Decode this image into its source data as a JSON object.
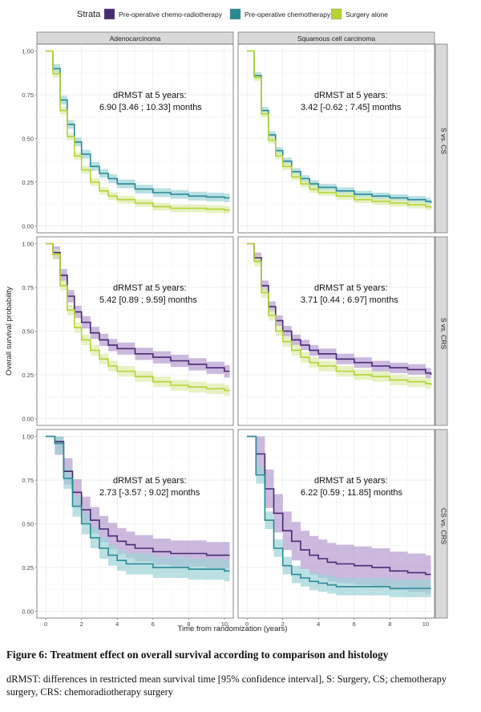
{
  "legend": {
    "title": "Strata",
    "items": [
      {
        "label": "Pre-operative chemo-radiotherapy",
        "color": "#4a2a73"
      },
      {
        "label": "Pre-operative chemotherapy",
        "color": "#2a8a93"
      },
      {
        "label": "Surgery alone",
        "color": "#b5d334"
      }
    ]
  },
  "colors": {
    "CRS": "#4a2a73",
    "CS": "#2a8a93",
    "S": "#b5d334",
    "CRS_band": "#b59bd0",
    "CS_band": "#9dd3d7",
    "S_band": "#dcedaa"
  },
  "caption": {
    "title": "Figure 6: Treatment effect on overall survival according to comparison and histology",
    "body": "dRMST: differences in restricted mean survival time [95% confidence interval], S: Surgery, CS; chemotherapy surgery, CRS: chemoradiotherapy surgery"
  },
  "chart_data": {
    "type": "line",
    "xlabel": "Time from randomization (years)",
    "ylabel": "Overall survival probability",
    "xlim": [
      -0.5,
      10.5
    ],
    "ylim": [
      -0.04,
      1.04
    ],
    "xticks": [
      0,
      2,
      4,
      6,
      8,
      10
    ],
    "yticks": [
      0,
      0.25,
      0.5,
      0.75,
      1
    ],
    "ytick_labels": [
      "0.00",
      "0.25",
      "0.50",
      "0.75",
      "1.00"
    ],
    "grid": true,
    "legend_position": "top",
    "columns": [
      "Adenocarcinoma",
      "Squamous cell carcinoma"
    ],
    "rows": [
      "S vs. CS",
      "S vs. CRS",
      "CS vs. CRS"
    ],
    "panels": [
      {
        "row": 0,
        "col": 0,
        "annotation": [
          "dRMST at 5 years:",
          "6.90 [3.46 ; 10.33] months"
        ],
        "series": [
          {
            "key": "CS",
            "x": [
              0,
              0.4,
              0.8,
              1.2,
              1.6,
              2,
              2.5,
              3,
              3.5,
              4,
              5,
              6,
              7,
              8,
              9,
              10,
              10.3
            ],
            "y": [
              1,
              0.9,
              0.72,
              0.58,
              0.48,
              0.41,
              0.34,
              0.3,
              0.27,
              0.24,
              0.21,
              0.19,
              0.18,
              0.17,
              0.165,
              0.16,
              0.16
            ],
            "band": 0.025
          },
          {
            "key": "S",
            "x": [
              0,
              0.4,
              0.8,
              1.2,
              1.6,
              2,
              2.5,
              3,
              3.5,
              4,
              5,
              6,
              7,
              8,
              9,
              10,
              10.3
            ],
            "y": [
              1,
              0.87,
              0.66,
              0.51,
              0.4,
              0.32,
              0.25,
              0.2,
              0.17,
              0.15,
              0.13,
              0.11,
              0.1,
              0.1,
              0.095,
              0.09,
              0.09
            ],
            "band": 0.022
          }
        ]
      },
      {
        "row": 0,
        "col": 1,
        "annotation": [
          "dRMST at 5 years:",
          "3.42 [-0.62 ; 7.45] months"
        ],
        "series": [
          {
            "key": "CS",
            "x": [
              0,
              0.4,
              0.8,
              1.2,
              1.6,
              2,
              2.5,
              3,
              3.5,
              4,
              5,
              6,
              7,
              8,
              9,
              10,
              10.3
            ],
            "y": [
              1,
              0.86,
              0.66,
              0.52,
              0.43,
              0.37,
              0.31,
              0.27,
              0.24,
              0.22,
              0.2,
              0.18,
              0.17,
              0.16,
              0.15,
              0.14,
              0.13
            ],
            "band": 0.02
          },
          {
            "key": "S",
            "x": [
              0,
              0.4,
              0.8,
              1.2,
              1.6,
              2,
              2.5,
              3,
              3.5,
              4,
              5,
              6,
              7,
              8,
              9,
              10,
              10.3
            ],
            "y": [
              1,
              0.85,
              0.64,
              0.49,
              0.4,
              0.34,
              0.28,
              0.24,
              0.21,
              0.19,
              0.17,
              0.15,
              0.14,
              0.13,
              0.12,
              0.11,
              0.1
            ],
            "band": 0.02
          }
        ]
      },
      {
        "row": 1,
        "col": 0,
        "annotation": [
          "dRMST at 5 years:",
          "5.42 [0.89 ; 9.59] months"
        ],
        "series": [
          {
            "key": "CRS",
            "x": [
              0,
              0.4,
              0.8,
              1.2,
              1.6,
              2,
              2.5,
              3,
              3.5,
              4,
              5,
              6,
              7,
              8,
              9,
              10,
              10.3
            ],
            "y": [
              1,
              0.95,
              0.82,
              0.7,
              0.61,
              0.55,
              0.49,
              0.45,
              0.42,
              0.4,
              0.37,
              0.35,
              0.33,
              0.31,
              0.29,
              0.27,
              0.27
            ],
            "band": 0.035
          },
          {
            "key": "S",
            "x": [
              0,
              0.4,
              0.8,
              1.2,
              1.6,
              2,
              2.5,
              3,
              3.5,
              4,
              5,
              6,
              7,
              8,
              9,
              10,
              10.3
            ],
            "y": [
              1,
              0.94,
              0.76,
              0.62,
              0.52,
              0.45,
              0.39,
              0.34,
              0.3,
              0.27,
              0.24,
              0.21,
              0.19,
              0.18,
              0.17,
              0.16,
              0.16
            ],
            "band": 0.03
          }
        ]
      },
      {
        "row": 1,
        "col": 1,
        "annotation": [
          "dRMST at 5 years:",
          "3.71 [0.44 ; 6.97] months"
        ],
        "series": [
          {
            "key": "CRS",
            "x": [
              0,
              0.4,
              0.8,
              1.2,
              1.6,
              2,
              2.5,
              3,
              3.5,
              4,
              5,
              6,
              7,
              8,
              9,
              10,
              10.3
            ],
            "y": [
              1,
              0.92,
              0.76,
              0.64,
              0.56,
              0.5,
              0.45,
              0.42,
              0.39,
              0.37,
              0.34,
              0.32,
              0.3,
              0.29,
              0.28,
              0.26,
              0.25
            ],
            "band": 0.03
          },
          {
            "key": "S",
            "x": [
              0,
              0.4,
              0.8,
              1.2,
              1.6,
              2,
              2.5,
              3,
              3.5,
              4,
              5,
              6,
              7,
              8,
              9,
              10,
              10.3
            ],
            "y": [
              1,
              0.9,
              0.72,
              0.59,
              0.5,
              0.44,
              0.39,
              0.35,
              0.32,
              0.3,
              0.27,
              0.25,
              0.24,
              0.22,
              0.21,
              0.2,
              0.19
            ],
            "band": 0.03
          }
        ]
      },
      {
        "row": 2,
        "col": 0,
        "annotation": [
          "dRMST at 5 years:",
          "2.73 [-3.57 ; 9.02] months"
        ],
        "series": [
          {
            "key": "CRS",
            "x": [
              0,
              0.5,
              1,
              1.5,
              2,
              2.5,
              3,
              3.5,
              4,
              4.5,
              5,
              6,
              7,
              8,
              9,
              10,
              10.3
            ],
            "y": [
              1,
              0.97,
              0.8,
              0.68,
              0.58,
              0.52,
              0.47,
              0.43,
              0.4,
              0.38,
              0.36,
              0.34,
              0.33,
              0.33,
              0.32,
              0.32,
              0.32
            ],
            "band": 0.075
          },
          {
            "key": "CS",
            "x": [
              0,
              0.5,
              1,
              1.5,
              2,
              2.5,
              3,
              3.5,
              4,
              4.5,
              5,
              6,
              7,
              8,
              9,
              10,
              10.3
            ],
            "y": [
              1,
              0.96,
              0.76,
              0.6,
              0.5,
              0.42,
              0.36,
              0.32,
              0.29,
              0.27,
              0.27,
              0.25,
              0.25,
              0.24,
              0.24,
              0.23,
              0.23
            ],
            "band": 0.06
          }
        ]
      },
      {
        "row": 2,
        "col": 1,
        "annotation": [
          "dRMST at 5 years:",
          "6.22 [0.59 ; 11.85] months"
        ],
        "series": [
          {
            "key": "CRS",
            "x": [
              0,
              0.5,
              1,
              1.5,
              2,
              2.5,
              3,
              3.5,
              4,
              4.5,
              5,
              6,
              7,
              8,
              9,
              10,
              10.3
            ],
            "y": [
              1,
              0.9,
              0.7,
              0.56,
              0.46,
              0.4,
              0.35,
              0.32,
              0.3,
              0.28,
              0.27,
              0.26,
              0.25,
              0.23,
              0.22,
              0.21,
              0.21
            ],
            "band": 0.11
          },
          {
            "key": "CS",
            "x": [
              0,
              0.5,
              1,
              1.5,
              2,
              2.5,
              3,
              3.5,
              4,
              4.5,
              5,
              6,
              7,
              8,
              9,
              10,
              10.3
            ],
            "y": [
              1,
              0.78,
              0.52,
              0.36,
              0.26,
              0.21,
              0.19,
              0.17,
              0.16,
              0.15,
              0.14,
              0.14,
              0.14,
              0.13,
              0.13,
              0.13,
              0.13
            ],
            "band": 0.05
          }
        ]
      }
    ]
  }
}
